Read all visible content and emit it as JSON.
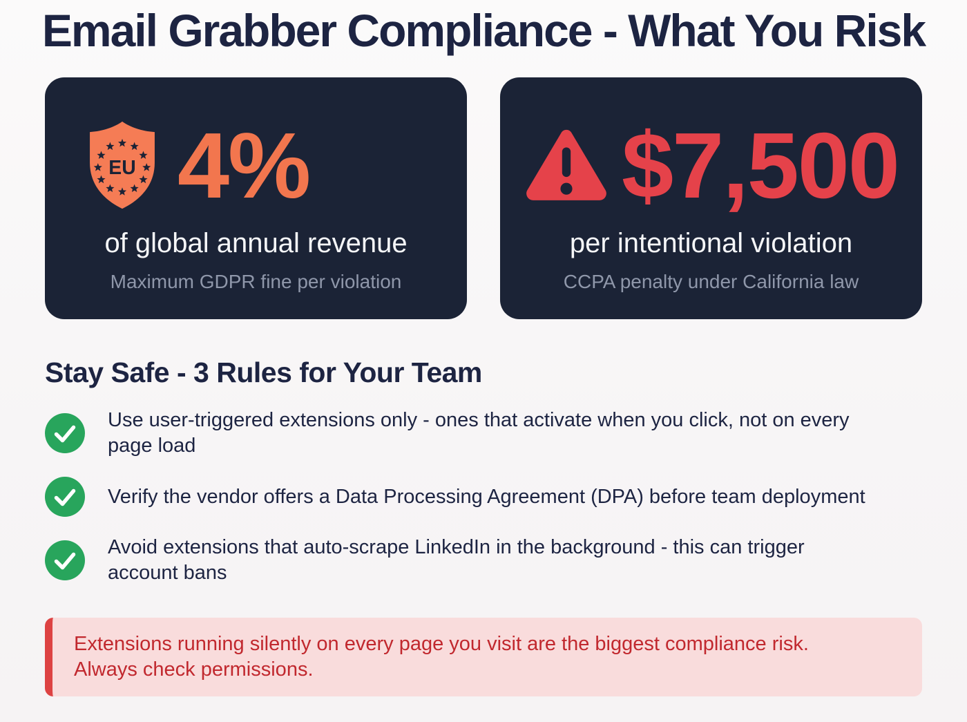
{
  "page_title": "Email Grabber Compliance - What You Risk",
  "colors": {
    "navy_text": "#1d2442",
    "card_bg": "#1b2336",
    "orange_accent": "#f2764e",
    "red_accent": "#e5424a",
    "green_check": "#28a55c",
    "muted_label": "#8f97aa",
    "white_label": "#f5f6f8",
    "callout_bg": "#f9dcdc",
    "callout_border": "#dd4242",
    "callout_text": "#c1282e"
  },
  "stat_cards": [
    {
      "icon": "eu-shield-icon",
      "icon_text": "EU",
      "value": "4%",
      "label": "of global annual revenue",
      "sublabel": "Maximum GDPR fine per violation"
    },
    {
      "icon": "warning-triangle-icon",
      "value": "$7,500",
      "label": "per intentional violation",
      "sublabel": "CCPA penalty under California law"
    }
  ],
  "rules": {
    "heading": "Stay Safe - 3 Rules for Your Team",
    "items": [
      {
        "text": "Use user-triggered extensions only - ones that activate when you click, not on every\npage load"
      },
      {
        "text": "Verify the vendor offers a Data Processing Agreement (DPA) before team deployment"
      },
      {
        "text": "Avoid extensions that auto-scrape LinkedIn in the background - this can trigger\naccount bans"
      }
    ]
  },
  "callout": {
    "text": "Extensions running silently on every page you visit are the biggest compliance risk.\nAlways check permissions."
  }
}
